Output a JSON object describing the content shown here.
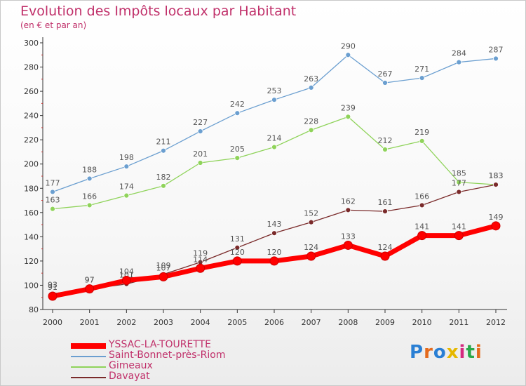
{
  "title": "Evolution des Impôts locaux par Habitant",
  "subtitle": "(en € et par an)",
  "logo": {
    "text": "Proxiti",
    "letter_colors": [
      "#2a7fd4",
      "#e46a1d",
      "#2a7fd4",
      "#e6b800",
      "#d42a7f",
      "#2aa84a",
      "#e46a1d"
    ]
  },
  "chart_data": {
    "type": "line",
    "x": [
      2000,
      2001,
      2002,
      2003,
      2004,
      2005,
      2006,
      2007,
      2008,
      2009,
      2010,
      2011,
      2012
    ],
    "xlabel": "",
    "ylabel": "",
    "ylim": [
      80,
      300
    ],
    "yticks": [
      80,
      100,
      120,
      140,
      160,
      180,
      200,
      220,
      240,
      260,
      280,
      300
    ],
    "grid": false,
    "legend": "bottom",
    "series": [
      {
        "name": "YSSAC-LA-TOURETTE",
        "color": "#ff0000",
        "values": [
          91,
          97,
          104,
          107,
          114,
          120,
          120,
          124,
          133,
          124,
          141,
          141,
          149
        ]
      },
      {
        "name": "Saint-Bonnet-près-Riom",
        "color": "#6b9fd0",
        "values": [
          177,
          188,
          198,
          211,
          227,
          242,
          253,
          263,
          290,
          267,
          271,
          284,
          287
        ]
      },
      {
        "name": "Gimeaux",
        "color": "#8fd35a",
        "values": [
          163,
          166,
          174,
          182,
          201,
          205,
          214,
          228,
          239,
          212,
          219,
          185,
          183
        ]
      },
      {
        "name": "Davayat",
        "color": "#7a2a2a",
        "values": [
          93,
          97,
          101,
          109,
          119,
          131,
          143,
          152,
          162,
          161,
          166,
          177,
          183
        ]
      }
    ]
  }
}
